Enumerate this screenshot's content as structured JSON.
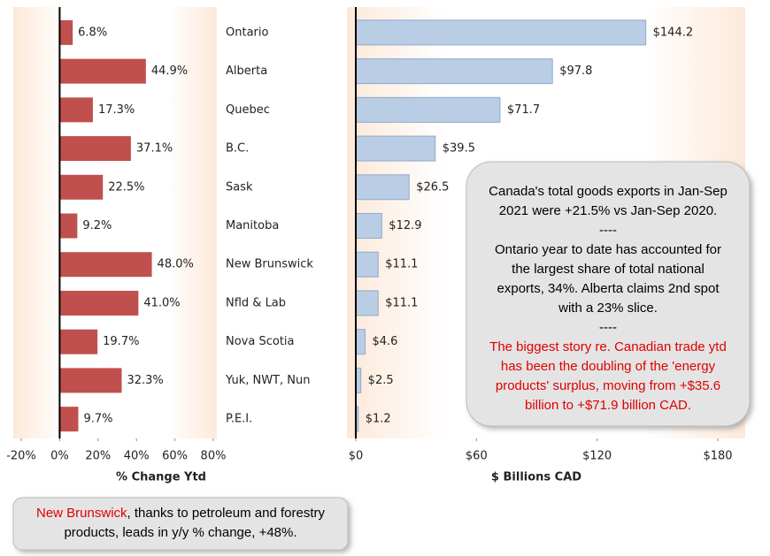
{
  "chart_data": [
    {
      "type": "hbar",
      "x_label": "% Change Ytd",
      "categories": [
        "Ontario",
        "Alberta",
        "Quebec",
        "B.C.",
        "Sask",
        "Manitoba",
        "New Brunswick",
        "Nfld & Lab",
        "Nova Scotia",
        "Yuk, NWT, Nun",
        "P.E.I."
      ],
      "values": [
        6.8,
        44.9,
        17.3,
        37.1,
        22.5,
        9.2,
        48.0,
        41.0,
        19.7,
        32.3,
        9.7
      ],
      "value_labels": [
        "6.8%",
        "44.9%",
        "17.3%",
        "37.1%",
        "22.5%",
        "9.2%",
        "48.0%",
        "41.0%",
        "19.7%",
        "32.3%",
        "9.7%"
      ],
      "color": "#c0504d",
      "xlim": [
        -20,
        80
      ],
      "xticks": [
        {
          "value": -20,
          "label": "-20%"
        },
        {
          "value": 0,
          "label": "0%"
        },
        {
          "value": 20,
          "label": "20%"
        },
        {
          "value": 40,
          "label": "40%"
        },
        {
          "value": 60,
          "label": "60%"
        },
        {
          "value": 80,
          "label": "80%"
        }
      ],
      "note": {
        "lines": [
          [
            {
              "text": "New Brunswick",
              "color": "#e00000"
            },
            {
              "text": ", thanks to petroleum and forestry",
              "color": "#000000"
            }
          ],
          [
            {
              "text": "products, leads in y/y % change, +48%.",
              "color": "#000000"
            }
          ]
        ]
      }
    },
    {
      "type": "hbar",
      "x_label": "$ Billions CAD",
      "values": [
        144.2,
        97.8,
        71.7,
        39.5,
        26.5,
        12.9,
        11.1,
        11.1,
        4.6,
        2.5,
        1.2
      ],
      "value_labels": [
        "$144.2",
        "$97.8",
        "$71.7",
        "$39.5",
        "$26.5",
        "$12.9",
        "$11.1",
        "$11.1",
        "$4.6",
        "$2.5",
        "$1.2"
      ],
      "color": "#b9cde5",
      "xlim": [
        0,
        180
      ],
      "xticks": [
        {
          "value": 0,
          "label": "$0"
        },
        {
          "value": 60,
          "label": "$60"
        },
        {
          "value": 120,
          "label": "$120"
        },
        {
          "value": 180,
          "label": "$180"
        }
      ],
      "note": {
        "lines": [
          [
            {
              "text": "Canada's total goods exports in Jan-Sep",
              "color": "#000000"
            }
          ],
          [
            {
              "text": "2021 were +21.5% vs Jan-Sep 2020.",
              "color": "#000000"
            }
          ],
          [
            {
              "text": "----",
              "color": "#000000"
            }
          ],
          [
            {
              "text": "Ontario year to date has accounted for",
              "color": "#000000"
            }
          ],
          [
            {
              "text": "the largest share of total national",
              "color": "#000000"
            }
          ],
          [
            {
              "text": "exports, 34%. Alberta claims 2nd spot",
              "color": "#000000"
            }
          ],
          [
            {
              "text": "with a 23% slice.",
              "color": "#000000"
            }
          ],
          [
            {
              "text": "----",
              "color": "#000000"
            }
          ],
          [
            {
              "text": "The biggest story re. Canadian trade ytd",
              "color": "#e00000"
            }
          ],
          [
            {
              "text": "has been the doubling of the 'energy",
              "color": "#e00000"
            }
          ],
          [
            {
              "text": "products' surplus, moving from +$35.6",
              "color": "#e00000"
            }
          ],
          [
            {
              "text": "billion to +$71.9 billion CAD.",
              "color": "#e00000"
            }
          ]
        ]
      }
    }
  ]
}
